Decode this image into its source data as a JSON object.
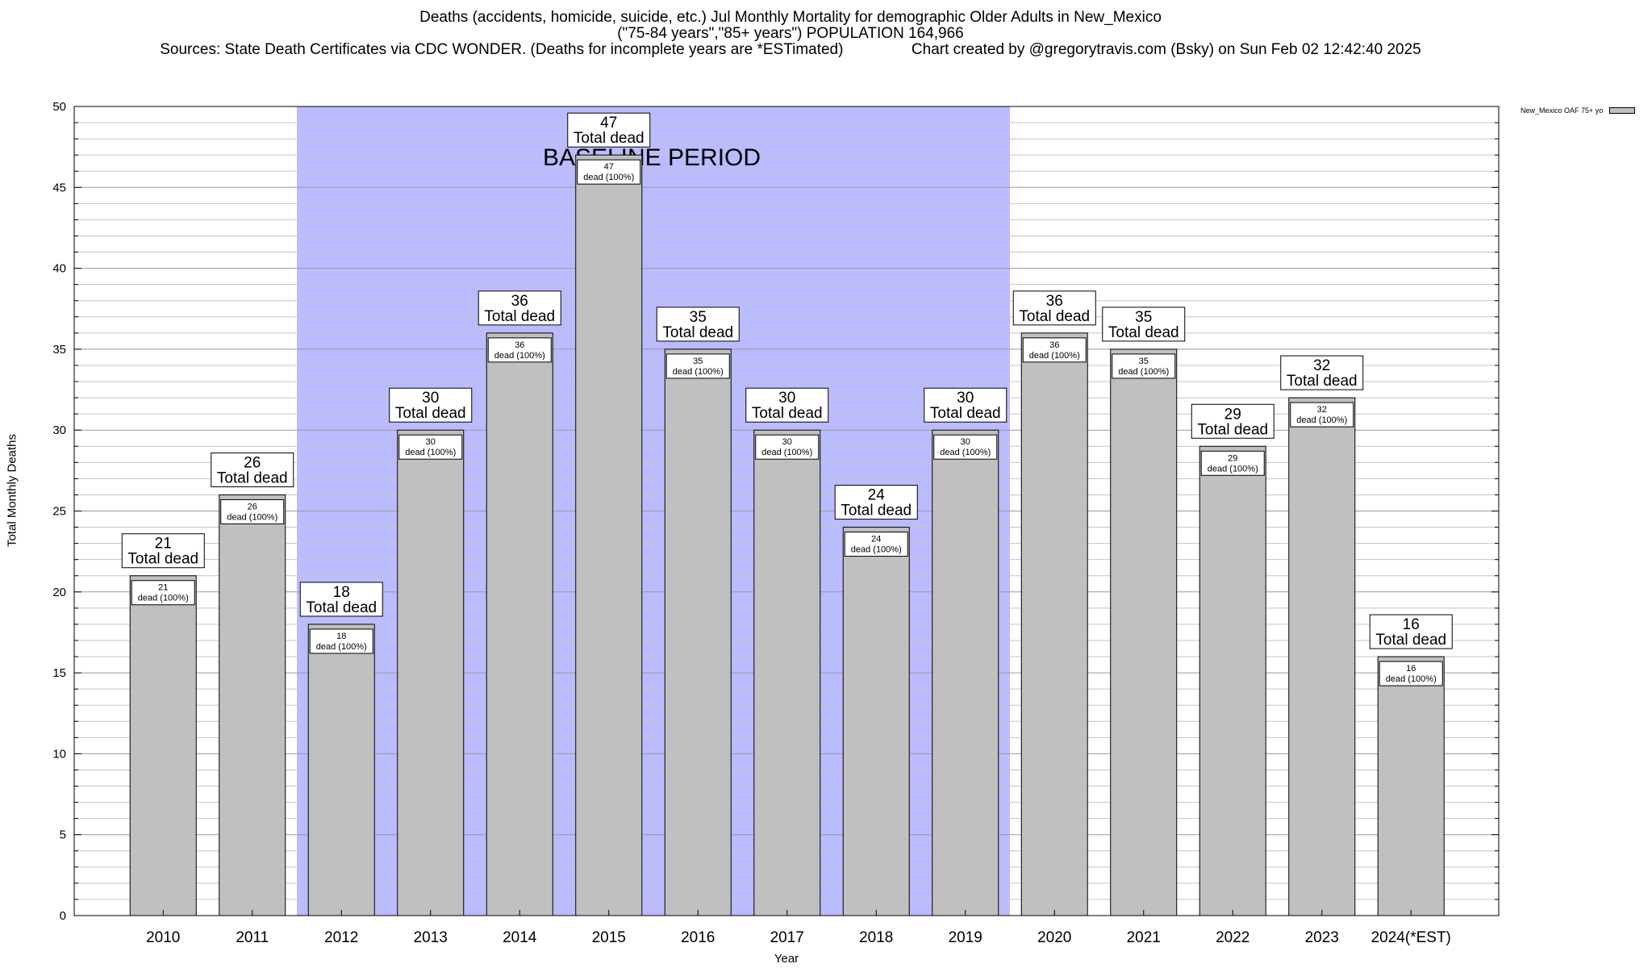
{
  "header": {
    "line1": "Deaths (accidents, homicide, suicide, etc.) Jul Monthly Mortality for demographic Older Adults in New_Mexico",
    "line2": "(\"75-84 years\",\"85+ years\") POPULATION 164,966",
    "line3": "Sources: State Death Certificates via CDC WONDER. (Deaths for incomplete years are *ESTimated)                Chart created by @gregorytravis.com (Bsky) on Sun Feb 02 12:42:40 2025"
  },
  "chart_data": {
    "type": "bar",
    "categories": [
      "2010",
      "2011",
      "2012",
      "2013",
      "2014",
      "2015",
      "2016",
      "2017",
      "2018",
      "2019",
      "2020",
      "2021",
      "2022",
      "2023",
      "2024(*EST)"
    ],
    "series": [
      {
        "name": "New_Mexico OAF 75+ yo",
        "values": [
          21,
          26,
          18,
          30,
          36,
          47,
          35,
          30,
          24,
          30,
          36,
          35,
          29,
          32,
          16
        ],
        "color": "#c0c0c0"
      }
    ],
    "xlabel": "Year",
    "ylabel": "Total Monthly Deaths",
    "ylim": [
      0,
      50
    ],
    "yticks": [
      0,
      5,
      10,
      15,
      20,
      25,
      30,
      35,
      40,
      45,
      50
    ],
    "grid": true,
    "legend_position": "top-right",
    "total_label": "Total dead",
    "inner_label": "dead (100%)",
    "baseline": {
      "label": "BASELINE PERIOD",
      "start": "2012",
      "end": "2019",
      "color": "#bbbbff"
    }
  }
}
